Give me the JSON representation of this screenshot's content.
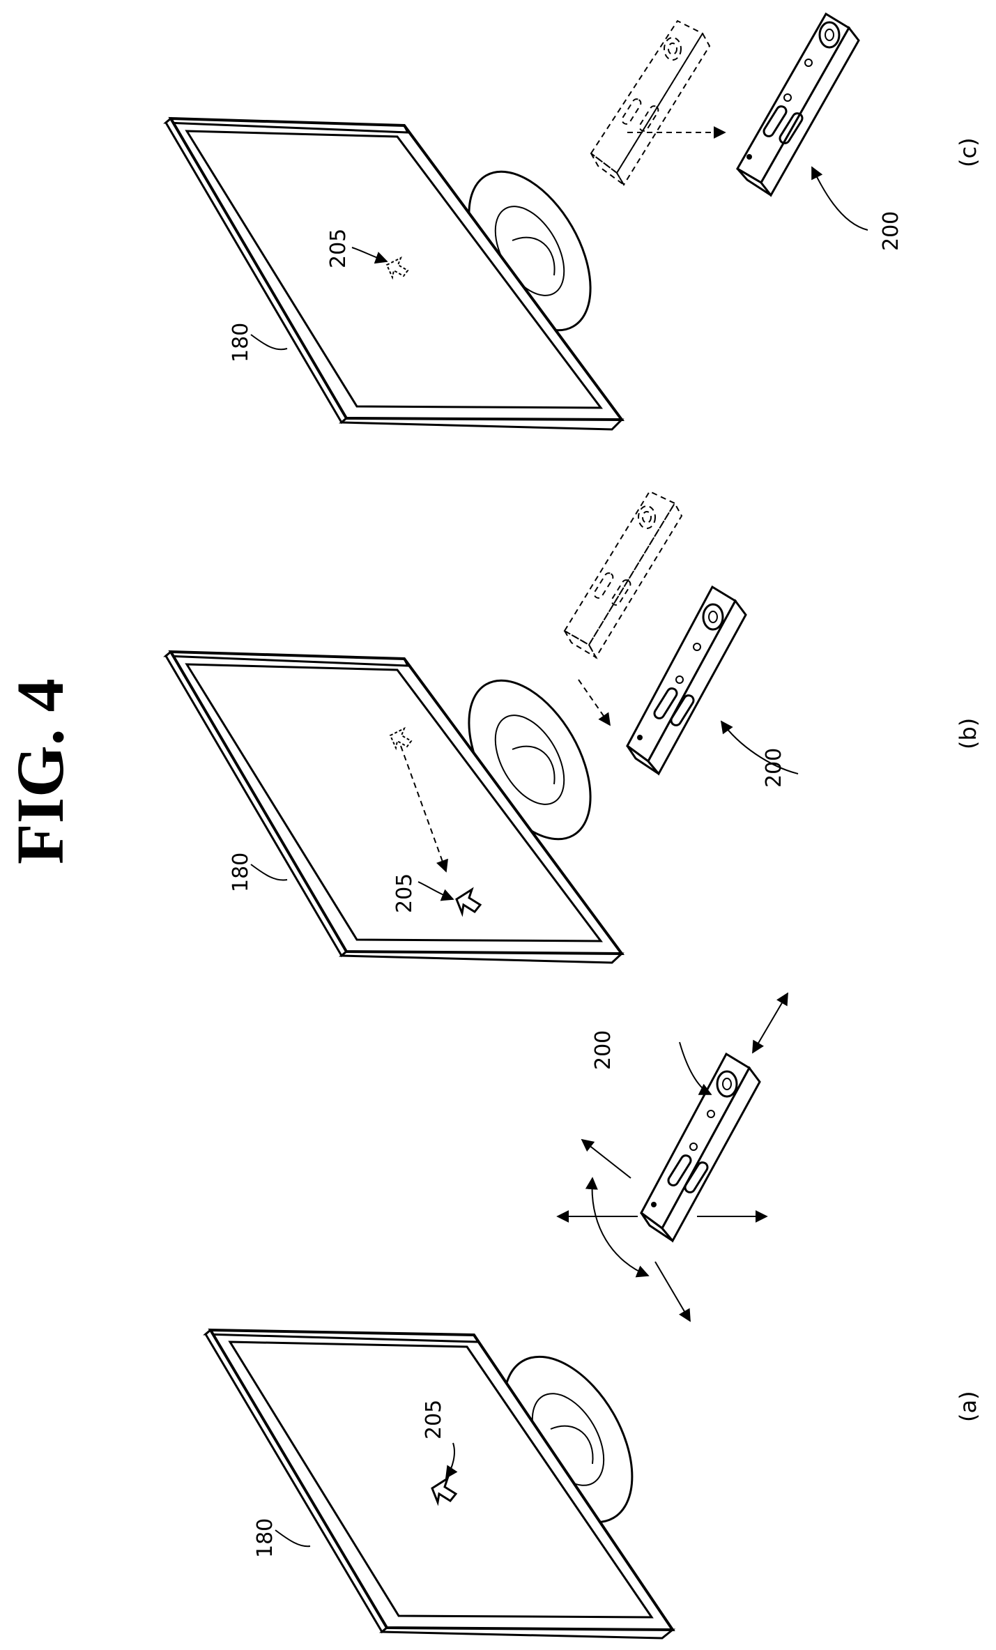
{
  "figure": {
    "title": "FIG. 4"
  },
  "panels": [
    {
      "id": "a",
      "caption": "(a)",
      "display_label": "180",
      "pointer_label": "205",
      "remote_label": "200"
    },
    {
      "id": "b",
      "caption": "(b)",
      "display_label": "180",
      "pointer_label": "205",
      "remote_label": "200"
    },
    {
      "id": "c",
      "caption": "(c)",
      "display_label": "180",
      "pointer_label": "205",
      "remote_label": "200"
    }
  ]
}
